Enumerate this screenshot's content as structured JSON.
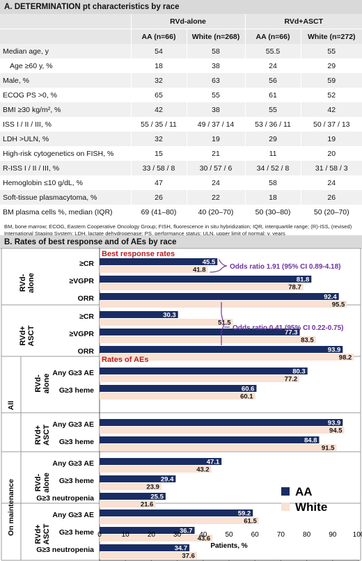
{
  "section_a": {
    "title": "A. DETERMINATION pt characteristics by race",
    "groups": [
      "RVd-alone",
      "RVd+ASCT"
    ],
    "columns": [
      "AA (n=66)",
      "White (n=268)",
      "AA (n=66)",
      "White (n=272)"
    ],
    "rows": [
      {
        "label": "Median age, y",
        "values": [
          "54",
          "58",
          "55.5",
          "55"
        ]
      },
      {
        "label": "Age ≥60 y, %",
        "values": [
          "18",
          "38",
          "24",
          "29"
        ]
      },
      {
        "label": "Male, %",
        "values": [
          "32",
          "63",
          "56",
          "59"
        ]
      },
      {
        "label": "ECOG PS >0, %",
        "values": [
          "65",
          "55",
          "61",
          "52"
        ]
      },
      {
        "label": "BMI ≥30 kg/m², %",
        "values": [
          "42",
          "38",
          "55",
          "42"
        ]
      },
      {
        "label": "ISS I / II / III, %",
        "values": [
          "55 / 35 / 11",
          "49 / 37 / 14",
          "53 / 36 / 11",
          "50 / 37 / 13"
        ]
      },
      {
        "label": "LDH >ULN, %",
        "values": [
          "32",
          "19",
          "29",
          "19"
        ]
      },
      {
        "label": "High-risk cytogenetics on FISH, %",
        "values": [
          "15",
          "21",
          "11",
          "20"
        ]
      },
      {
        "label": "R-ISS I / II / III, %",
        "values": [
          "33 / 58 / 8",
          "30 / 57 / 6",
          "34 / 52 / 8",
          "31 / 58 / 3"
        ]
      },
      {
        "label": "Hemoglobin ≤10 g/dL, %",
        "values": [
          "47",
          "24",
          "58",
          "24"
        ]
      },
      {
        "label": "Soft-tissue plasmacytoma, %",
        "values": [
          "26",
          "22",
          "18",
          "26"
        ]
      },
      {
        "label": "BM plasma cells %, median (IQR)",
        "values": [
          "69 (41–80)",
          "40 (20–70)",
          "50 (30–80)",
          "50 (20–70)"
        ]
      }
    ],
    "abbreviations": "BM, bone marrow; ECOG, Eastern Cooperative Oncology Group; FISH, fluorescence in situ hybridization; IQR, interquartile range; (R)-ISS, (revised) International Staging System; LDH, lactate dehydrogenase; PS, performance status; ULN, upper limit of normal; y, years"
  },
  "section_b": {
    "title": "B. Rates of best response and of AEs by race"
  },
  "colors": {
    "aa": "#1a2d63",
    "white": "#f9e1d3",
    "accent_red": "#b22222",
    "odds_purple": "#7030a0"
  },
  "chart_data": {
    "type": "bar",
    "orientation": "horizontal",
    "xlabel": "Patients, %",
    "xlim": [
      0,
      100
    ],
    "xticks": [
      0,
      10,
      20,
      30,
      40,
      50,
      60,
      70,
      80,
      90,
      100
    ],
    "legend": {
      "position": "bottom-right",
      "entries": [
        "AA",
        "White"
      ]
    },
    "panels": [
      {
        "title": "Best response rates",
        "blocks": [
          {
            "group": "RVd-\nalone",
            "items": [
              {
                "label": "≥CR",
                "aa": 45.5,
                "white": 41.8
              },
              {
                "label": "≥VGPR",
                "aa": 81.8,
                "white": 78.7
              },
              {
                "label": "ORR",
                "aa": 92.4,
                "white": 95.5
              }
            ]
          },
          {
            "group": "RVd+\nASCT",
            "items": [
              {
                "label": "≥CR",
                "aa": 30.3,
                "white": 51.5
              },
              {
                "label": "≥VGPR",
                "aa": 77.3,
                "white": 83.5
              },
              {
                "label": "ORR",
                "aa": 93.9,
                "white": 98.2
              }
            ]
          }
        ]
      },
      {
        "title": "Rates of AEs",
        "blocks": [
          {
            "outer": "All",
            "group": "RVd-\nalone",
            "items": [
              {
                "label": "Any G≥3 AE",
                "aa": 80.3,
                "white": 77.2
              },
              {
                "label": "G≥3 heme",
                "aa": 60.6,
                "white": 60.1
              }
            ]
          },
          {
            "outer": "All",
            "group": "RVd+\nASCT",
            "items": [
              {
                "label": "Any G≥3 AE",
                "aa": 93.9,
                "white": 94.5
              },
              {
                "label": "G≥3 heme",
                "aa": 84.8,
                "white": 91.5
              }
            ]
          },
          {
            "outer": "On maintenance",
            "group": "RVd-\nalone",
            "items": [
              {
                "label": "Any G≥3 AE",
                "aa": 47.1,
                "white": 43.2
              },
              {
                "label": "G≥3 heme",
                "aa": 29.4,
                "white": 23.9
              },
              {
                "label": "G≥3 neutropenia",
                "aa": 25.5,
                "white": 21.6
              }
            ]
          },
          {
            "outer": "On maintenance",
            "group": "RVd+\nASCT",
            "items": [
              {
                "label": "Any G≥3 AE",
                "aa": 59.2,
                "white": 61.5
              },
              {
                "label": "G≥3 heme",
                "aa": 36.7,
                "white": 43.6
              },
              {
                "label": "G≥3 neutropenia",
                "aa": 34.7,
                "white": 37.6
              }
            ]
          }
        ]
      }
    ],
    "annotations": [
      {
        "text": "Odds ratio 1.91 (95% CI 0.89-4.18)"
      },
      {
        "text": "Odds ratio 0.41 (95% CI 0.22-0.75)"
      }
    ]
  }
}
